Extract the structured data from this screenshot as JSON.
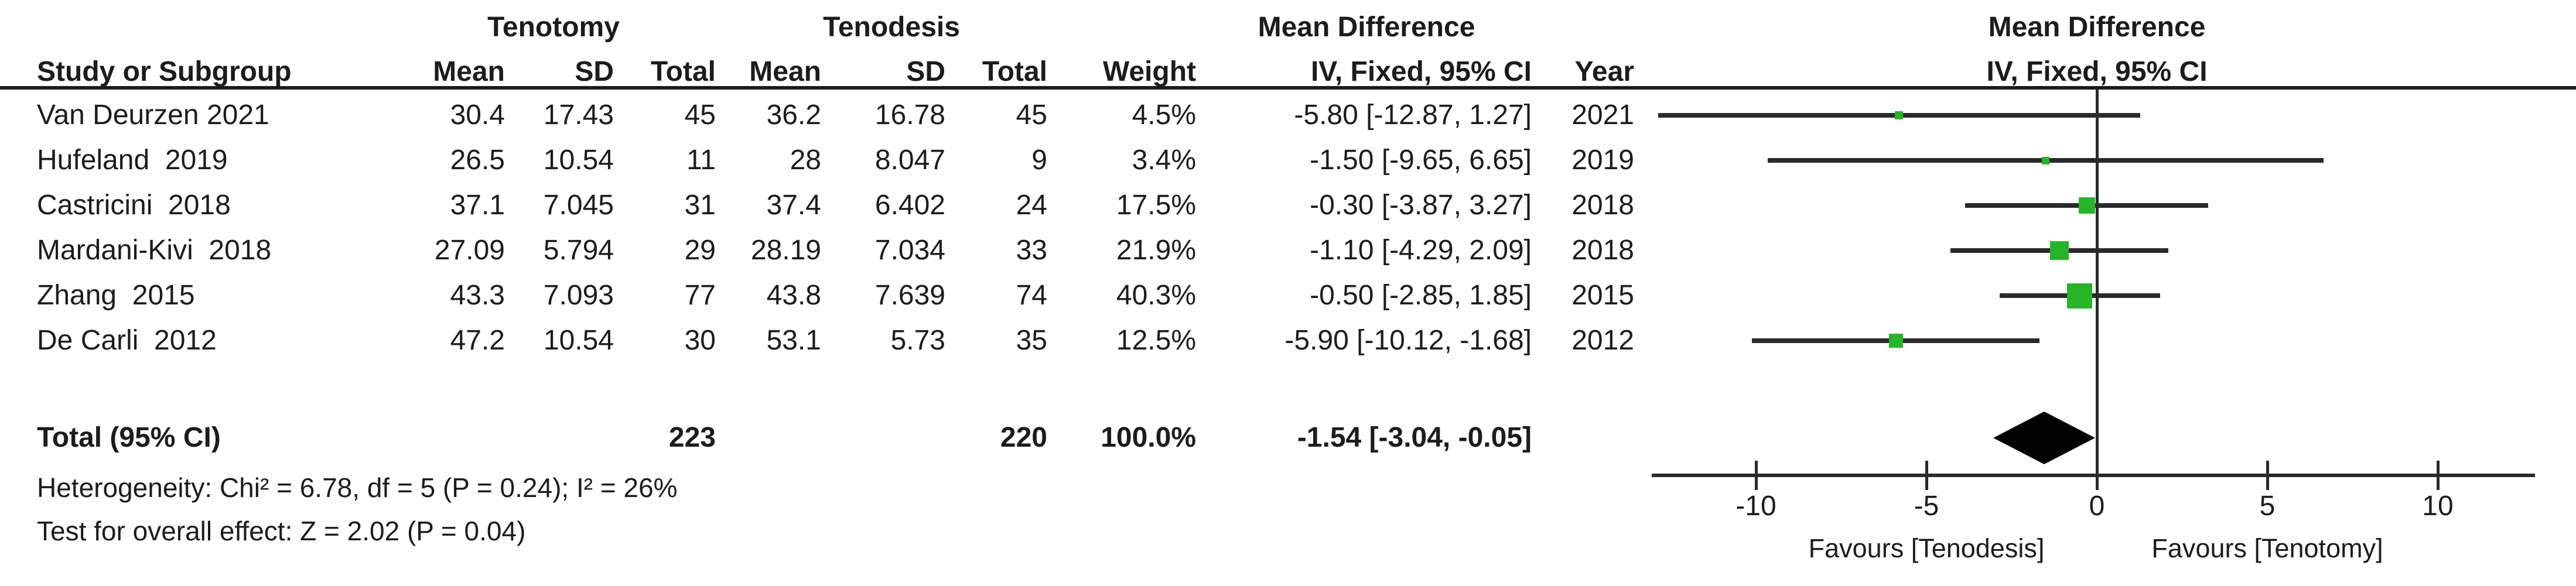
{
  "table": {
    "group_headers": {
      "tenotomy": "Tenotomy",
      "tenodesis": "Tenodesis",
      "mean_difference": "Mean Difference",
      "mean_difference_plot": "Mean Difference"
    },
    "column_headers": {
      "study": "Study or Subgroup",
      "mean1": "Mean",
      "sd1": "SD",
      "total1": "Total",
      "mean2": "Mean",
      "sd2": "SD",
      "total2": "Total",
      "weight": "Weight",
      "ci": "IV, Fixed, 95% CI",
      "year": "Year",
      "ci_plot": "IV, Fixed, 95% CI"
    },
    "rows": [
      {
        "study": "Van Deurzen 2021",
        "mean1": "30.4",
        "sd1": "17.43",
        "total1": "45",
        "mean2": "36.2",
        "sd2": "16.78",
        "total2": "45",
        "weight": "4.5%",
        "ci": "-5.80 [-12.87, 1.27]",
        "year": "2021"
      },
      {
        "study": "Hufeland  2019",
        "mean1": "26.5",
        "sd1": "10.54",
        "total1": "11",
        "mean2": "28",
        "sd2": "8.047",
        "total2": "9",
        "weight": "3.4%",
        "ci": "-1.50 [-9.65, 6.65]",
        "year": "2019"
      },
      {
        "study": "Castricini  2018",
        "mean1": "37.1",
        "sd1": "7.045",
        "total1": "31",
        "mean2": "37.4",
        "sd2": "6.402",
        "total2": "24",
        "weight": "17.5%",
        "ci": "-0.30 [-3.87, 3.27]",
        "year": "2018"
      },
      {
        "study": "Mardani-Kivi  2018",
        "mean1": "27.09",
        "sd1": "5.794",
        "total1": "29",
        "mean2": "28.19",
        "sd2": "7.034",
        "total2": "33",
        "weight": "21.9%",
        "ci": "-1.10 [-4.29, 2.09]",
        "year": "2018"
      },
      {
        "study": "Zhang  2015",
        "mean1": "43.3",
        "sd1": "7.093",
        "total1": "77",
        "mean2": "43.8",
        "sd2": "7.639",
        "total2": "74",
        "weight": "40.3%",
        "ci": "-0.50 [-2.85, 1.85]",
        "year": "2015"
      },
      {
        "study": "De Carli  2012",
        "mean1": "47.2",
        "sd1": "10.54",
        "total1": "30",
        "mean2": "53.1",
        "sd2": "5.73",
        "total2": "35",
        "weight": "12.5%",
        "ci": "-5.90 [-10.12, -1.68]",
        "year": "2012"
      }
    ],
    "total_row": {
      "label": "Total (95% CI)",
      "total1": "223",
      "total2": "220",
      "weight": "100.0%",
      "ci": "-1.54 [-3.04, -0.05]"
    },
    "footer": {
      "heterogeneity": "Heterogeneity: Chi² = 6.78, df = 5 (P = 0.24); I² = 26%",
      "overall_effect": "Test for overall effect: Z = 2.02 (P = 0.04)"
    }
  },
  "chart_data": {
    "type": "forest",
    "effect_measure": "Mean Difference, IV, Fixed, 95% CI",
    "x_axis": {
      "min": -13,
      "max": 12.8,
      "ticks": [
        -10,
        -5,
        0,
        5,
        10
      ]
    },
    "studies": [
      {
        "name": "Van Deurzen 2021",
        "estimate": -5.8,
        "ci_lower": -12.87,
        "ci_upper": 1.27,
        "weight_pct": 4.5
      },
      {
        "name": "Hufeland 2019",
        "estimate": -1.5,
        "ci_lower": -9.65,
        "ci_upper": 6.65,
        "weight_pct": 3.4
      },
      {
        "name": "Castricini 2018",
        "estimate": -0.3,
        "ci_lower": -3.87,
        "ci_upper": 3.27,
        "weight_pct": 17.5
      },
      {
        "name": "Mardani-Kivi 2018",
        "estimate": -1.1,
        "ci_lower": -4.29,
        "ci_upper": 2.09,
        "weight_pct": 21.9
      },
      {
        "name": "Zhang 2015",
        "estimate": -0.5,
        "ci_lower": -2.85,
        "ci_upper": 1.85,
        "weight_pct": 40.3
      },
      {
        "name": "De Carli 2012",
        "estimate": -5.9,
        "ci_lower": -10.12,
        "ci_upper": -1.68,
        "weight_pct": 12.5
      }
    ],
    "total": {
      "estimate": -1.54,
      "ci_lower": -3.04,
      "ci_upper": -0.05,
      "weight_pct": 100.0
    },
    "favours_left": "Favours [Tenodesis]",
    "favours_right": "Favours [Tenotomy]",
    "marker_color": "#28b428",
    "line_color": "#2a2a2a",
    "axis_color": "#2a2a2a",
    "diamond_color": "#000000"
  }
}
